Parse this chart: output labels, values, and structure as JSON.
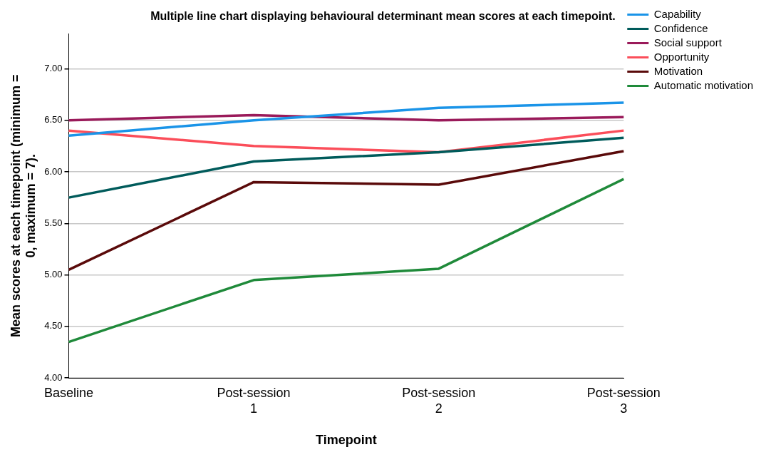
{
  "chart_data": {
    "type": "line",
    "title": "Multiple line chart displaying behavioural determinant mean scores at each timepoint.",
    "xlabel": "Timepoint",
    "ylabel": "Mean scores at each timepoint (minimum = 0, maximum = 7).",
    "categories": [
      "Baseline",
      "Post-session 1",
      "Post-session 2",
      "Post-session 3"
    ],
    "ylim": [
      4,
      7.34
    ],
    "yticks": [
      {
        "value": 4,
        "label": "4.00"
      },
      {
        "value": 4.5,
        "label": "4.50"
      },
      {
        "value": 5,
        "label": "5.00"
      },
      {
        "value": 5.5,
        "label": "5.50"
      },
      {
        "value": 6,
        "label": "6.00"
      },
      {
        "value": 6.5,
        "label": "6.50"
      },
      {
        "value": 7,
        "label": "7.00"
      }
    ],
    "grid": "y",
    "legend": "top right",
    "marker": "none",
    "line_style": "solid",
    "series": [
      {
        "name": "Capability",
        "color": "#1a94e8",
        "values": [
          6.35,
          6.5,
          6.62,
          6.67
        ]
      },
      {
        "name": "Confidence",
        "color": "#005b5b",
        "values": [
          5.75,
          6.1,
          6.19,
          6.33
        ]
      },
      {
        "name": "Social support",
        "color": "#9a1a5a",
        "values": [
          6.5,
          6.55,
          6.5,
          6.53
        ]
      },
      {
        "name": "Opportunity",
        "color": "#fb4e5a",
        "values": [
          6.4,
          6.25,
          6.19,
          6.4
        ]
      },
      {
        "name": "Motivation",
        "color": "#5a0a0a",
        "values": [
          5.05,
          5.9,
          5.875,
          6.2
        ]
      },
      {
        "name": "Automatic motivation",
        "color": "#1f8a3a",
        "values": [
          4.35,
          4.95,
          5.06,
          5.93
        ]
      }
    ]
  }
}
